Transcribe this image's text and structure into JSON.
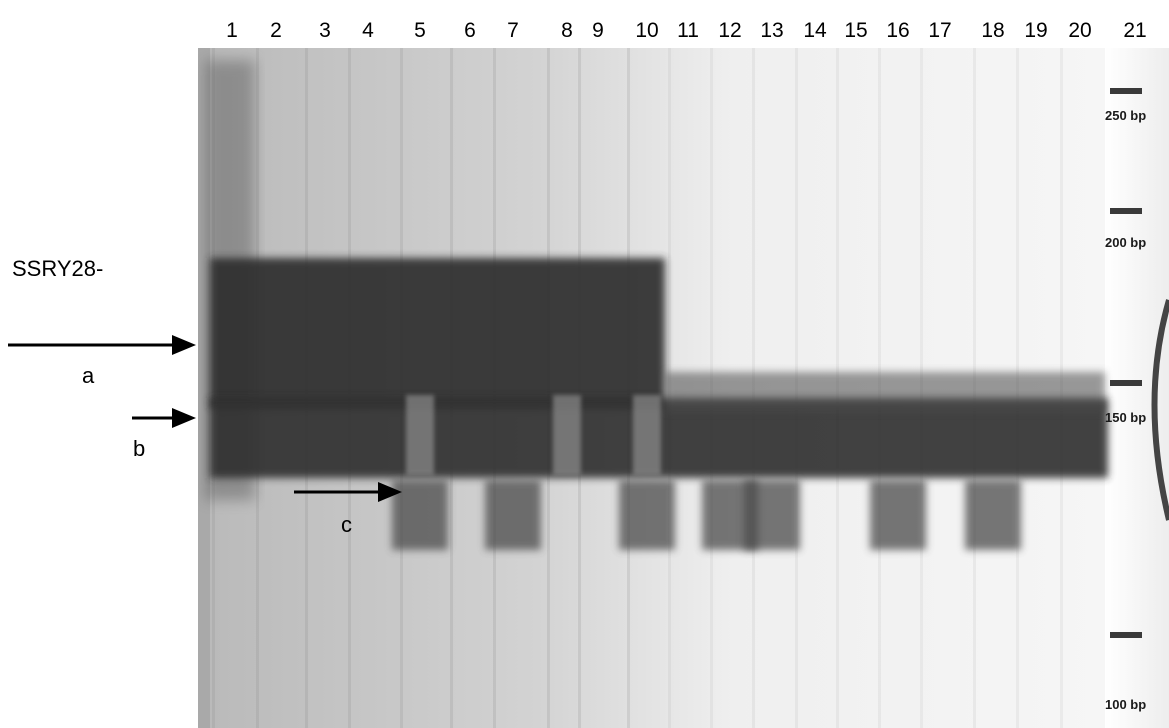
{
  "lane_numbers": [
    "1",
    "2",
    "3",
    "4",
    "5",
    "6",
    "7",
    "8",
    "9",
    "10",
    "11",
    "12",
    "13",
    "14",
    "15",
    "16",
    "17",
    "18",
    "19",
    "20",
    "21"
  ],
  "marker_title": "SSRY28-",
  "arrow_labels": {
    "a": "a",
    "b": "b",
    "c": "c"
  },
  "ladder_labels": [
    "250 bp",
    "200 bp",
    "150 bp",
    "100 bp"
  ],
  "colors": {
    "gel_background": "#c4c4c4",
    "band_dark": "#2e2e2e",
    "band_mid": "#4c4c4c",
    "ink": "#000000"
  }
}
